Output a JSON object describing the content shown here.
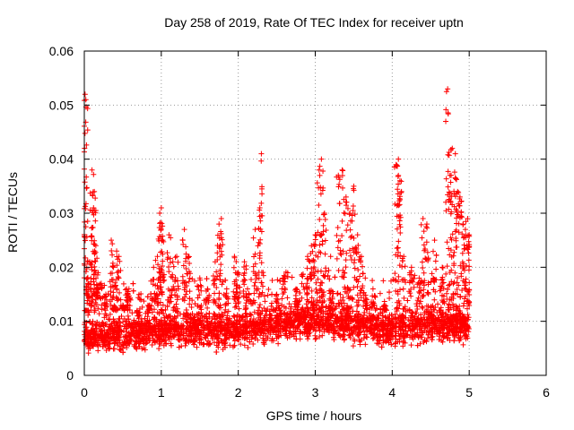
{
  "chart_data": {
    "type": "scatter",
    "title": "Day 258 of 2019, Rate Of TEC Index for receiver uptn",
    "xlabel": "GPS time / hours",
    "ylabel": "ROTI / TECUs",
    "xlim": [
      0,
      6
    ],
    "ylim": [
      0,
      0.06
    ],
    "x_ticks": [
      "0",
      "1",
      "2",
      "3",
      "4",
      "5",
      "6"
    ],
    "y_ticks": [
      "0",
      "0.01",
      "0.02",
      "0.03",
      "0.04",
      "0.05",
      "0.06"
    ],
    "grid": true,
    "marker": "plus",
    "color": "#ff0000",
    "series": [
      {
        "name": "ROTI",
        "points": [
          [
            0.01,
            0.052
          ],
          [
            0.02,
            0.051
          ],
          [
            0.03,
            0.012
          ],
          [
            0.05,
            0.017
          ],
          [
            0.07,
            0.021
          ],
          [
            0.1,
            0.038
          ],
          [
            0.12,
            0.031
          ],
          [
            0.13,
            0.034
          ],
          [
            0.15,
            0.024
          ],
          [
            0.18,
            0.019
          ],
          [
            0.22,
            0.017
          ],
          [
            0.28,
            0.015
          ],
          [
            0.35,
            0.025
          ],
          [
            0.38,
            0.02
          ],
          [
            0.42,
            0.023
          ],
          [
            0.45,
            0.022
          ],
          [
            0.5,
            0.013
          ],
          [
            0.55,
            0.016
          ],
          [
            0.58,
            0.016
          ],
          [
            0.7,
            0.011
          ],
          [
            0.85,
            0.013
          ],
          [
            0.9,
            0.02
          ],
          [
            0.95,
            0.022
          ],
          [
            0.98,
            0.03
          ],
          [
            1.0,
            0.031
          ],
          [
            1.02,
            0.025
          ],
          [
            1.1,
            0.026
          ],
          [
            1.15,
            0.021
          ],
          [
            1.2,
            0.022
          ],
          [
            1.3,
            0.027
          ],
          [
            1.35,
            0.022
          ],
          [
            1.5,
            0.018
          ],
          [
            1.6,
            0.016
          ],
          [
            1.7,
            0.021
          ],
          [
            1.75,
            0.028
          ],
          [
            1.78,
            0.029
          ],
          [
            1.85,
            0.016
          ],
          [
            1.95,
            0.022
          ],
          [
            2.0,
            0.019
          ],
          [
            2.08,
            0.021
          ],
          [
            2.12,
            0.016
          ],
          [
            2.22,
            0.027
          ],
          [
            2.28,
            0.031
          ],
          [
            2.3,
            0.041
          ],
          [
            2.5,
            0.015
          ],
          [
            2.6,
            0.018
          ],
          [
            2.75,
            0.016
          ],
          [
            2.9,
            0.022
          ],
          [
            2.95,
            0.024
          ],
          [
            3.0,
            0.026
          ],
          [
            3.05,
            0.038
          ],
          [
            3.08,
            0.04
          ],
          [
            3.12,
            0.03
          ],
          [
            3.2,
            0.022
          ],
          [
            3.3,
            0.037
          ],
          [
            3.35,
            0.038
          ],
          [
            3.4,
            0.033
          ],
          [
            3.45,
            0.03
          ],
          [
            3.5,
            0.035
          ],
          [
            3.55,
            0.026
          ],
          [
            3.6,
            0.022
          ],
          [
            3.65,
            0.018
          ],
          [
            3.75,
            0.016
          ],
          [
            3.9,
            0.013
          ],
          [
            4.05,
            0.039
          ],
          [
            4.08,
            0.04
          ],
          [
            4.1,
            0.036
          ],
          [
            4.15,
            0.022
          ],
          [
            4.25,
            0.02
          ],
          [
            4.35,
            0.018
          ],
          [
            4.4,
            0.029
          ],
          [
            4.45,
            0.028
          ],
          [
            4.55,
            0.025
          ],
          [
            4.65,
            0.02
          ],
          [
            4.72,
            0.053
          ],
          [
            4.75,
            0.037
          ],
          [
            4.78,
            0.042
          ],
          [
            4.82,
            0.041
          ],
          [
            4.85,
            0.034
          ],
          [
            4.88,
            0.033
          ],
          [
            4.92,
            0.028
          ],
          [
            4.95,
            0.027
          ],
          [
            4.98,
            0.029
          ],
          [
            5.0,
            0.026
          ]
        ],
        "background_band": {
          "x_range": [
            0,
            5
          ],
          "y_center_by_hour": [
            [
              0,
              0.0075
            ],
            [
              0.5,
              0.0075
            ],
            [
              1.0,
              0.0085
            ],
            [
              1.5,
              0.0085
            ],
            [
              2.0,
              0.0085
            ],
            [
              2.5,
              0.0095
            ],
            [
              3.0,
              0.0105
            ],
            [
              3.5,
              0.0095
            ],
            [
              4.0,
              0.0085
            ],
            [
              4.5,
              0.0095
            ],
            [
              5.0,
              0.009
            ]
          ],
          "y_min": 0.003,
          "y_max": 0.016,
          "estimated_point_count": 3800
        }
      }
    ]
  }
}
